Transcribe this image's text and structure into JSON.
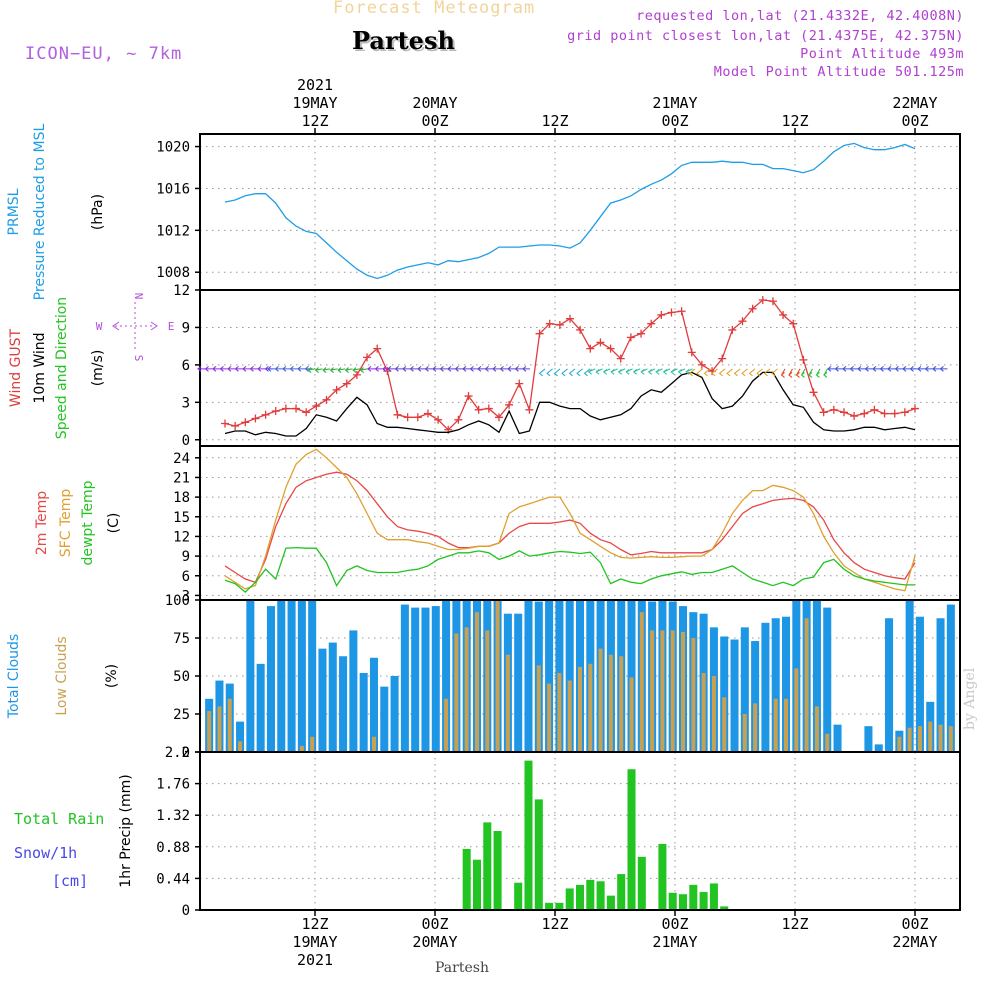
{
  "header": {
    "subtitle": "Forecast Meteogram",
    "location": "Partesh",
    "model": "ICON−EU, ~ 7km",
    "requested": "requested lon,lat (21.4332E, 42.4008N)",
    "grid_point": "grid point closest lon,lat (21.4375E, 42.375N)",
    "point_altitude": "Point Altitude 493m",
    "model_altitude": "Model Point Altitude 501.125m"
  },
  "footer": {
    "location": "Partesh",
    "watermark": "by Angel"
  },
  "top_axis": [
    {
      "hour": 6,
      "lines": [
        "2021",
        "19MAY",
        "12Z"
      ]
    },
    {
      "hour": 18,
      "lines": [
        "20MAY",
        "00Z"
      ]
    },
    {
      "hour": 30,
      "lines": [
        "12Z"
      ]
    },
    {
      "hour": 42,
      "lines": [
        "21MAY",
        "00Z"
      ]
    },
    {
      "hour": 54,
      "lines": [
        "12Z"
      ]
    },
    {
      "hour": 66,
      "lines": [
        "22MAY",
        "00Z"
      ]
    }
  ],
  "bottom_axis": [
    {
      "hour": 6,
      "lines": [
        "12Z",
        "19MAY",
        "2021"
      ]
    },
    {
      "hour": 18,
      "lines": [
        "00Z",
        "20MAY"
      ]
    },
    {
      "hour": 30,
      "lines": [
        "12Z"
      ]
    },
    {
      "hour": 42,
      "lines": [
        "00Z",
        "21MAY"
      ]
    },
    {
      "hour": 54,
      "lines": [
        "12Z"
      ]
    },
    {
      "hour": 66,
      "lines": [
        "00Z",
        "22MAY"
      ]
    }
  ],
  "colors": {
    "pressure": "#1e9ee6",
    "gust": "#e03c3c",
    "wind": "#000000",
    "speed_dir": "#22c422",
    "temp": "#e84848",
    "sfc_temp": "#e0a030",
    "dewpoint": "#22c422",
    "total_clouds": "#1e96e6",
    "low_clouds": "#c8a050",
    "rain": "#22c422",
    "snow": "#4848e8",
    "compass": "#b050d8",
    "grid": "#999999"
  },
  "chart_data": [
    {
      "type": "line",
      "name": "pressure",
      "ylabels": [
        {
          "text": "PRMSL",
          "color": "#1e9ee6"
        },
        {
          "text": "Pressure Reduced to MSL",
          "color": "#1e9ee6"
        },
        {
          "text": "(hPa)",
          "color": "#000000"
        }
      ],
      "ylim": [
        1006.3,
        1021.2
      ],
      "yticks": [
        1008,
        1012,
        1016,
        1020
      ],
      "series": [
        {
          "name": "PRMSL",
          "color": "#1e9ee6",
          "values": [
            1014.7,
            1014.9,
            1015.3,
            1015.5,
            1015.5,
            1014.6,
            1013.2,
            1012.4,
            1011.9,
            1011.7,
            1010.8,
            1009.9,
            1009.1,
            1008.3,
            1007.7,
            1007.4,
            1007.7,
            1008.2,
            1008.5,
            1008.7,
            1008.9,
            1008.7,
            1009.1,
            1009.0,
            1009.2,
            1009.4,
            1009.8,
            1010.4,
            1010.4,
            1010.4,
            1010.5,
            1010.6,
            1010.6,
            1010.5,
            1010.3,
            1010.8,
            1012.0,
            1013.3,
            1014.6,
            1014.9,
            1015.3,
            1015.9,
            1016.4,
            1016.8,
            1017.4,
            1018.2,
            1018.5,
            1018.5,
            1018.5,
            1018.6,
            1018.5,
            1018.5,
            1018.3,
            1018.3,
            1017.9,
            1017.9,
            1017.7,
            1017.5,
            1017.8,
            1018.6,
            1019.5,
            1020.1,
            1020.3,
            1019.9,
            1019.7,
            1019.7,
            1019.9,
            1020.2,
            1019.8
          ]
        }
      ]
    },
    {
      "type": "line",
      "name": "wind",
      "ylabels": [
        {
          "text": "Wind GUST",
          "color": "#e03c3c"
        },
        {
          "text": "10m Wind",
          "color": "#000000"
        },
        {
          "text": "Speed and Direction",
          "color": "#22c422"
        },
        {
          "text": "(m/s)",
          "color": "#000000"
        }
      ],
      "ylim": [
        -0.5,
        12
      ],
      "yticks": [
        0,
        3,
        6,
        9,
        12
      ],
      "compass": {
        "north": "N",
        "south": "S",
        "west": "W",
        "east": "E"
      },
      "series": [
        {
          "name": "Wind GUST",
          "color": "#e03c3c",
          "markers": true,
          "values": [
            1.3,
            1.1,
            1.4,
            1.7,
            2.0,
            2.3,
            2.5,
            2.5,
            2.2,
            2.7,
            3.2,
            4.0,
            4.5,
            5.2,
            6.6,
            7.3,
            5.5,
            2.0,
            1.8,
            1.8,
            2.1,
            1.6,
            0.8,
            1.6,
            3.5,
            2.4,
            2.5,
            1.8,
            2.8,
            4.5,
            2.4,
            8.5,
            9.3,
            9.2,
            9.7,
            8.8,
            7.3,
            7.8,
            7.3,
            6.5,
            8.2,
            8.5,
            9.3,
            10.0,
            10.2,
            10.3,
            7.0,
            6.0,
            5.5,
            6.5,
            8.8,
            9.5,
            10.5,
            11.2,
            11.1,
            10.0,
            9.3,
            6.4,
            3.8,
            2.2,
            2.4,
            2.2,
            1.9,
            2.1,
            2.4,
            2.1,
            2.1,
            2.2,
            2.5
          ]
        },
        {
          "name": "10m Wind",
          "color": "#000000",
          "markers": false,
          "values": [
            0.5,
            0.7,
            0.7,
            0.4,
            0.6,
            0.5,
            0.3,
            0.3,
            0.9,
            2.0,
            1.8,
            1.5,
            2.5,
            3.4,
            2.8,
            1.3,
            1.0,
            1.0,
            0.9,
            0.8,
            0.7,
            0.6,
            0.6,
            0.8,
            1.2,
            1.5,
            1.2,
            0.6,
            2.3,
            0.5,
            0.7,
            3.0,
            3.0,
            2.7,
            2.5,
            2.5,
            1.9,
            1.6,
            1.8,
            2.0,
            2.5,
            3.5,
            4.0,
            3.8,
            4.5,
            5.2,
            5.4,
            5.0,
            3.3,
            2.5,
            2.7,
            3.5,
            4.7,
            5.4,
            5.4,
            4.0,
            2.8,
            2.6,
            1.4,
            0.8,
            0.7,
            0.7,
            0.8,
            1.0,
            1.0,
            0.8,
            0.9,
            1.0,
            0.8
          ]
        }
      ]
    },
    {
      "type": "line",
      "name": "temperature",
      "ylabels": [
        {
          "text": "2m Temp",
          "color": "#e84848"
        },
        {
          "text": "SFC Temp",
          "color": "#e0a030"
        },
        {
          "text": "dewpt Temp",
          "color": "#22c422"
        },
        {
          "text": "(C)",
          "color": "#000000"
        }
      ],
      "ylim": [
        2.3,
        25.8
      ],
      "yticks": [
        3,
        6,
        9,
        12,
        15,
        18,
        21,
        24
      ],
      "series": [
        {
          "name": "2m Temp",
          "color": "#e84848",
          "values": [
            7.5,
            6.5,
            5.5,
            5.0,
            8.5,
            13.5,
            17.0,
            19.5,
            20.5,
            21.0,
            21.5,
            21.8,
            21.5,
            20.5,
            19.0,
            17.0,
            15.0,
            13.5,
            13.0,
            12.8,
            12.5,
            12.0,
            11.0,
            10.3,
            10.3,
            10.5,
            10.5,
            11.0,
            12.5,
            13.5,
            14.0,
            14.0,
            14.0,
            14.2,
            14.5,
            14.0,
            12.5,
            11.5,
            11.0,
            10.0,
            9.2,
            9.4,
            9.7,
            9.5,
            9.5,
            9.5,
            9.5,
            9.5,
            10.0,
            11.5,
            13.5,
            15.5,
            16.5,
            17.0,
            17.5,
            17.7,
            17.8,
            17.5,
            16.5,
            14.5,
            11.5,
            9.5,
            8.0,
            7.0,
            6.5,
            6.0,
            5.7,
            5.5,
            8.0
          ]
        },
        {
          "name": "SFC Temp",
          "color": "#e0a030",
          "values": [
            6.0,
            5.0,
            4.0,
            4.5,
            9.0,
            14.5,
            19.5,
            23.0,
            24.5,
            25.3,
            24.0,
            22.5,
            21.0,
            18.5,
            15.5,
            12.5,
            11.5,
            11.5,
            11.5,
            11.2,
            11.0,
            10.5,
            10.0,
            10.0,
            10.2,
            10.5,
            10.5,
            11.0,
            15.5,
            16.5,
            17.0,
            17.5,
            18.0,
            18.0,
            15.5,
            12.5,
            11.5,
            10.5,
            9.5,
            8.8,
            8.7,
            8.8,
            8.9,
            8.8,
            8.8,
            8.9,
            9.0,
            9.0,
            10.0,
            12.5,
            15.5,
            17.5,
            19.0,
            19.0,
            19.8,
            19.5,
            19.0,
            18.0,
            15.5,
            12.0,
            9.5,
            7.5,
            6.5,
            5.5,
            5.0,
            4.5,
            4.0,
            3.7,
            9.0
          ]
        },
        {
          "name": "dewpt Temp",
          "color": "#22c422",
          "values": [
            5.3,
            4.8,
            3.5,
            5.0,
            7.0,
            5.5,
            10.2,
            10.3,
            10.2,
            10.2,
            8.0,
            4.5,
            6.8,
            7.5,
            6.8,
            6.5,
            6.5,
            6.5,
            6.8,
            7.0,
            7.5,
            8.5,
            9.0,
            9.5,
            9.5,
            9.8,
            9.5,
            8.5,
            9.0,
            9.8,
            9.0,
            9.2,
            9.5,
            9.7,
            9.6,
            9.4,
            9.6,
            8.0,
            4.8,
            5.5,
            5.0,
            4.8,
            5.5,
            6.0,
            6.3,
            6.6,
            6.2,
            6.5,
            6.5,
            7.0,
            7.5,
            6.5,
            5.5,
            5.0,
            4.5,
            5.0,
            4.5,
            5.5,
            5.8,
            8.0,
            8.5,
            7.0,
            6.0,
            5.5,
            5.2,
            5.0,
            4.8,
            4.6,
            4.6
          ]
        }
      ]
    },
    {
      "type": "bar",
      "name": "clouds",
      "ylabels": [
        {
          "text": "Total Clouds",
          "color": "#1e96e6"
        },
        {
          "text": "Low Clouds",
          "color": "#c8a050"
        },
        {
          "text": "(%)",
          "color": "#000000"
        }
      ],
      "ylim": [
        0,
        100
      ],
      "yticks": [
        0,
        25,
        50,
        75,
        100
      ],
      "series": [
        {
          "name": "Total Clouds",
          "color": "#1e96e6",
          "values": [
            35,
            47,
            45,
            20,
            100,
            58,
            96,
            100,
            100,
            100,
            100,
            68,
            72,
            63,
            80,
            52,
            62,
            43,
            50,
            97,
            95,
            95,
            96,
            100,
            100,
            100,
            100,
            100,
            100,
            91,
            91,
            100,
            99,
            100,
            100,
            100,
            100,
            100,
            100,
            100,
            100,
            100,
            100,
            99,
            100,
            99,
            96,
            92,
            91,
            82,
            76,
            74,
            82,
            73,
            85,
            88,
            89,
            100,
            100,
            100,
            95,
            18,
            0,
            0,
            17,
            5,
            88,
            14,
            100,
            89,
            33,
            88,
            97
          ]
        },
        {
          "name": "Low Clouds",
          "color": "#c8a050",
          "values": [
            27,
            30,
            35,
            7,
            0,
            0,
            0,
            0,
            0,
            4,
            10,
            0,
            0,
            0,
            0,
            0,
            10,
            0,
            0,
            0,
            0,
            0,
            0,
            35,
            78,
            82,
            92,
            80,
            100,
            64,
            0,
            0,
            57,
            45,
            52,
            47,
            56,
            58,
            68,
            64,
            63,
            49,
            92,
            80,
            80,
            80,
            79,
            75,
            52,
            50,
            36,
            0,
            25,
            32,
            0,
            35,
            35,
            55,
            88,
            30,
            12,
            0,
            0,
            0,
            0,
            0,
            0,
            10,
            16,
            17,
            20,
            18,
            17
          ]
        }
      ]
    },
    {
      "type": "bar",
      "name": "precip",
      "ylabels": [
        {
          "text": "1hr Precip (mm)",
          "color": "#000000"
        }
      ],
      "side_labels": [
        {
          "text": "Total  Rain",
          "color": "#22c422"
        },
        {
          "text": "Snow/1h",
          "color": "#4848e8"
        },
        {
          "text": "[cm]",
          "color": "#4848e8"
        }
      ],
      "ylim": [
        0,
        2.2
      ],
      "yticks": [
        0,
        0.44,
        0.88,
        1.32,
        1.76,
        2.2
      ],
      "series": [
        {
          "name": "Total Rain",
          "color": "#22c422",
          "values": [
            0,
            0,
            0,
            0,
            0,
            0,
            0,
            0,
            0,
            0,
            0,
            0,
            0,
            0,
            0,
            0,
            0,
            0,
            0,
            0,
            0,
            0,
            0,
            0,
            0,
            0.85,
            0.7,
            1.22,
            1.1,
            0,
            0.38,
            2.08,
            1.54,
            0.1,
            0.1,
            0.3,
            0.35,
            0.42,
            0.4,
            0.2,
            0.5,
            1.96,
            0.74,
            0,
            0.92,
            0.24,
            0.22,
            0.35,
            0.25,
            0.37,
            0.05,
            0,
            0,
            0,
            0,
            0,
            0,
            0,
            0,
            0,
            0,
            0,
            0,
            0,
            0,
            0,
            0,
            0,
            0,
            0,
            0,
            0,
            0
          ]
        }
      ]
    }
  ]
}
